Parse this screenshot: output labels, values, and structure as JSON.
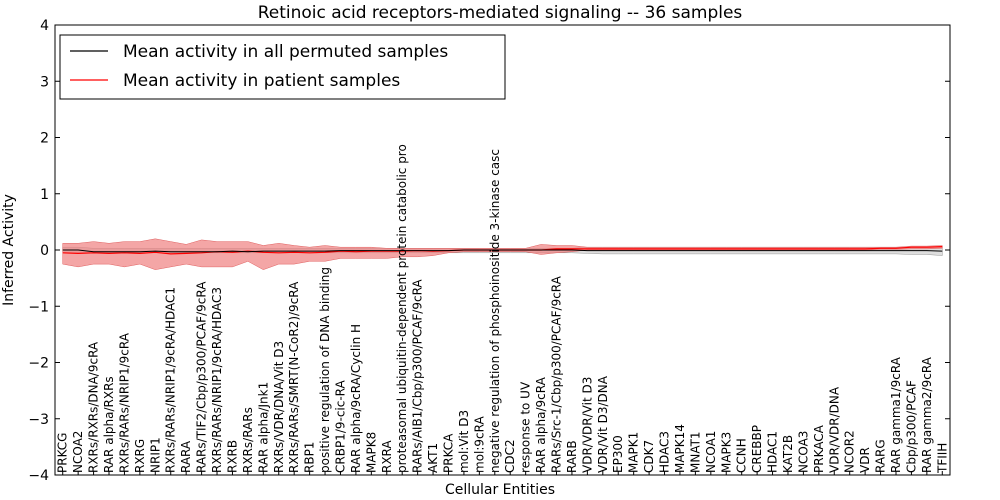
{
  "chart_data": {
    "type": "line",
    "title": "Retinoic acid receptors-mediated signaling -- 36 samples",
    "xlabel": "Cellular Entities",
    "ylabel": "Inferred Activity",
    "ylim": [
      -4,
      4
    ],
    "yticks": [
      "−4",
      "−3",
      "−2",
      "−1",
      "0",
      "1",
      "2",
      "3",
      "4"
    ],
    "grid": false,
    "legend_position": "top-left",
    "colors": {
      "permuted": "#000000",
      "patient": "#ff0000",
      "patient_band": "#f08080",
      "permuted_band": "#c8c8c8"
    },
    "categories": [
      "PRKCG",
      "NCOA2",
      "RXRs/RXRs/DNA/9cRA",
      "RAR alpha/RXRs",
      "RXRs/RARs/NRIP1/9cRA",
      "RXRG",
      "NRIP1",
      "RXRs/RARs/NRIP1/9cRA/HDAC1",
      "RARA",
      "RARs/TIF2/Cbp/p300/PCAF/9cRA",
      "RXRs/RARs/NRIP1/9cRA/HDAC3",
      "RXRB",
      "RXRs/RARs",
      "RAR alpha/Jnk1",
      "RXRs/VDR/DNA/Vit D3",
      "RXRs/RARs/SMRT(N-CoR2)/9cRA",
      "RBP1",
      "positive regulation of DNA binding",
      "CRBP1/9-cic-RA",
      "RAR alpha/9cRA/Cyclin H",
      "MAPK8",
      "RXRA",
      "proteasomal ubiquitin-dependent protein catabolic pro",
      "RARs/AIB1/Cbp/p300/PCAF/9cRA",
      "AKT1",
      "PRKCA",
      "mol:Vit D3",
      "mol:9cRA",
      "negative regulation of phosphoinositide 3-kinase casc",
      "CDC2",
      "response to UV",
      "RAR alpha/9cRA",
      "RARs/Src-1/Cbp/p300/PCAF/9cRA",
      "RARB",
      "VDR/VDR/Vit D3",
      "VDR/Vit D3/DNA",
      "EP300",
      "MAPK1",
      "CDK7",
      "HDAC3",
      "MAPK14",
      "MNAT1",
      "NCOA1",
      "MAPK3",
      "CCNH",
      "CREBBP",
      "HDAC1",
      "KAT2B",
      "NCOA3",
      "PRKACA",
      "VDR/VDR/DNA",
      "NCOR2",
      "VDR",
      "RARG",
      "RAR gamma1/9cRA",
      "Cbp/p300/PCAF",
      "RAR gamma2/9cRA",
      "TFIIH"
    ],
    "series": [
      {
        "name": "Mean activity in all permuted samples",
        "values": [
          0.0,
          0.0,
          -0.03,
          -0.03,
          -0.03,
          -0.03,
          -0.02,
          -0.03,
          -0.03,
          -0.03,
          -0.03,
          -0.02,
          -0.03,
          -0.02,
          -0.02,
          -0.02,
          -0.02,
          -0.02,
          -0.01,
          -0.01,
          -0.01,
          -0.01,
          -0.01,
          -0.01,
          -0.01,
          -0.01,
          0.0,
          0.0,
          0.0,
          0.0,
          0.0,
          0.0,
          0.0,
          0.0,
          -0.01,
          -0.01,
          -0.01,
          -0.01,
          -0.01,
          -0.01,
          -0.01,
          -0.01,
          -0.01,
          -0.01,
          -0.01,
          -0.01,
          -0.01,
          -0.01,
          -0.01,
          -0.01,
          -0.01,
          -0.01,
          -0.01,
          -0.01,
          -0.01,
          -0.01,
          -0.01,
          -0.02
        ],
        "lower": [
          -0.05,
          -0.05,
          -0.05,
          -0.05,
          -0.05,
          -0.05,
          -0.05,
          -0.05,
          -0.05,
          -0.05,
          -0.05,
          -0.05,
          -0.05,
          -0.05,
          -0.05,
          -0.05,
          -0.05,
          -0.05,
          -0.05,
          -0.05,
          -0.05,
          -0.05,
          -0.05,
          -0.05,
          -0.05,
          -0.05,
          -0.05,
          -0.05,
          -0.05,
          -0.05,
          -0.05,
          -0.05,
          -0.05,
          -0.05,
          -0.06,
          -0.07,
          -0.07,
          -0.07,
          -0.07,
          -0.07,
          -0.07,
          -0.07,
          -0.07,
          -0.07,
          -0.07,
          -0.07,
          -0.07,
          -0.07,
          -0.07,
          -0.07,
          -0.07,
          -0.07,
          -0.07,
          -0.07,
          -0.07,
          -0.08,
          -0.08,
          -0.1
        ],
        "upper": [
          0.05,
          0.05,
          0.03,
          0.03,
          0.03,
          0.03,
          0.03,
          0.03,
          0.03,
          0.03,
          0.03,
          0.03,
          0.03,
          0.03,
          0.03,
          0.03,
          0.03,
          0.03,
          0.03,
          0.03,
          0.03,
          0.03,
          0.03,
          0.03,
          0.03,
          0.03,
          0.03,
          0.03,
          0.03,
          0.03,
          0.03,
          0.03,
          0.03,
          0.03,
          0.05,
          0.05,
          0.05,
          0.05,
          0.05,
          0.05,
          0.05,
          0.05,
          0.05,
          0.05,
          0.05,
          0.05,
          0.05,
          0.05,
          0.05,
          0.05,
          0.05,
          0.05,
          0.05,
          0.05,
          0.05,
          0.05,
          0.05,
          0.05
        ]
      },
      {
        "name": "Mean activity in patient samples",
        "values": [
          -0.05,
          -0.06,
          -0.05,
          -0.06,
          -0.05,
          -0.06,
          -0.04,
          -0.07,
          -0.06,
          -0.05,
          -0.03,
          -0.04,
          -0.02,
          -0.04,
          -0.05,
          -0.04,
          -0.05,
          -0.04,
          -0.02,
          -0.03,
          -0.02,
          -0.02,
          -0.02,
          -0.01,
          -0.02,
          -0.01,
          0.0,
          0.0,
          0.0,
          0.0,
          0.0,
          0.0,
          0.02,
          0.02,
          0.02,
          0.02,
          0.02,
          0.02,
          0.02,
          0.02,
          0.02,
          0.02,
          0.02,
          0.02,
          0.02,
          0.02,
          0.02,
          0.02,
          0.02,
          0.02,
          0.02,
          0.02,
          0.02,
          0.03,
          0.03,
          0.05,
          0.05,
          0.06
        ],
        "lower": [
          -0.25,
          -0.3,
          -0.25,
          -0.25,
          -0.3,
          -0.25,
          -0.35,
          -0.3,
          -0.25,
          -0.3,
          -0.3,
          -0.3,
          -0.2,
          -0.35,
          -0.25,
          -0.25,
          -0.2,
          -0.2,
          -0.15,
          -0.15,
          -0.15,
          -0.15,
          -0.12,
          -0.12,
          -0.1,
          -0.05,
          -0.03,
          -0.03,
          -0.03,
          -0.03,
          -0.03,
          -0.08,
          -0.05,
          -0.03,
          0.0,
          0.0,
          0.0,
          0.0,
          0.0,
          0.0,
          0.0,
          0.0,
          0.0,
          0.0,
          0.0,
          0.0,
          0.0,
          0.0,
          0.0,
          0.0,
          0.0,
          0.0,
          0.0,
          0.01,
          0.01,
          0.02,
          0.02,
          0.03
        ],
        "upper": [
          0.12,
          0.12,
          0.15,
          0.12,
          0.15,
          0.15,
          0.2,
          0.15,
          0.1,
          0.18,
          0.15,
          0.15,
          0.15,
          0.08,
          0.12,
          0.08,
          0.05,
          0.08,
          0.05,
          0.05,
          0.05,
          0.03,
          0.03,
          0.03,
          0.03,
          0.03,
          0.03,
          0.03,
          0.03,
          0.03,
          0.03,
          0.1,
          0.08,
          0.08,
          0.05,
          0.05,
          0.05,
          0.05,
          0.05,
          0.05,
          0.05,
          0.05,
          0.05,
          0.05,
          0.05,
          0.05,
          0.05,
          0.05,
          0.05,
          0.05,
          0.05,
          0.05,
          0.05,
          0.05,
          0.05,
          0.07,
          0.07,
          0.08
        ]
      }
    ]
  }
}
